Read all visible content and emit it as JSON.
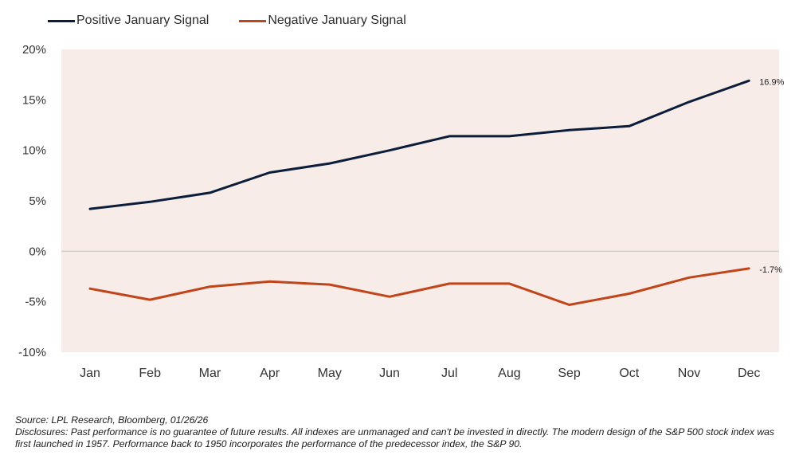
{
  "legend": [
    {
      "label": "Positive January Signal",
      "color": "#0b1d3a"
    },
    {
      "label": "Negative January Signal",
      "color": "#c0451a"
    }
  ],
  "chart_data": {
    "type": "line",
    "categories": [
      "Jan",
      "Feb",
      "Mar",
      "Apr",
      "May",
      "Jun",
      "Jul",
      "Aug",
      "Sep",
      "Oct",
      "Nov",
      "Dec"
    ],
    "series": [
      {
        "name": "Positive January Signal",
        "color": "#0b1d3a",
        "values": [
          4.2,
          4.9,
          5.8,
          7.8,
          8.7,
          10.0,
          11.4,
          11.4,
          12.0,
          12.4,
          14.8,
          16.9
        ],
        "end_label": "16.9%"
      },
      {
        "name": "Negative January Signal",
        "color": "#c0451a",
        "values": [
          -3.7,
          -4.8,
          -3.5,
          -3.0,
          -3.3,
          -4.5,
          -3.2,
          -3.2,
          -5.3,
          -4.2,
          -2.6,
          -1.7
        ],
        "end_label": "-1.7%"
      }
    ],
    "ylim": [
      -10,
      20
    ],
    "yticks": [
      -10,
      -5,
      0,
      5,
      10,
      15,
      20
    ],
    "ytick_labels": [
      "-10%",
      "-5%",
      "0%",
      "5%",
      "10%",
      "15%",
      "20%"
    ],
    "plot_background": "#f7ece8",
    "legend_position": "top-left",
    "grid": false
  },
  "footer": {
    "source": "Source: LPL Research, Bloomberg, 01/26/26",
    "disclosure": "Disclosures: Past performance is no guarantee of future results. All indexes are unmanaged and can't be invested in directly. The modern design of the S&P 500 stock index was first launched in 1957. Performance back to 1950 incorporates the performance of the predecessor index, the S&P 90."
  }
}
